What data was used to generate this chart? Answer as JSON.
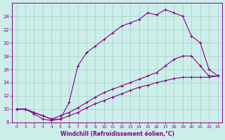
{
  "xlabel": "Windchill (Refroidissement éolien,°C)",
  "background_color": "#cceee8",
  "grid_color": "#aacccc",
  "line_color": "#880088",
  "xlim": [
    -0.5,
    23.5
  ],
  "ylim": [
    8,
    26
  ],
  "yticks": [
    8,
    10,
    12,
    14,
    16,
    18,
    20,
    22,
    24
  ],
  "xticks": [
    0,
    1,
    2,
    3,
    4,
    5,
    6,
    7,
    8,
    9,
    10,
    11,
    12,
    13,
    14,
    15,
    16,
    17,
    18,
    19,
    20,
    21,
    22,
    23
  ],
  "curve1_x": [
    0,
    1,
    2,
    3,
    4,
    5,
    6,
    7,
    8,
    9,
    10,
    11,
    12,
    13,
    14,
    15,
    16,
    17,
    18,
    19,
    20,
    21,
    22,
    23
  ],
  "curve1_y": [
    10.0,
    10.0,
    9.5,
    9.0,
    8.5,
    8.5,
    11.0,
    16.5,
    18.5,
    19.5,
    20.5,
    21.5,
    22.5,
    23.0,
    23.5,
    24.5,
    24.2,
    25.0,
    24.5,
    24.0,
    21.0,
    20.0,
    16.0,
    15.0
  ],
  "curve2_x": [
    0,
    1,
    2,
    3,
    4,
    5,
    6,
    7,
    8,
    9,
    10,
    11,
    12,
    13,
    14,
    15,
    16,
    17,
    18,
    19,
    20,
    21,
    22,
    23
  ],
  "curve2_y": [
    10.0,
    10.0,
    9.5,
    9.0,
    8.5,
    9.0,
    9.5,
    10.2,
    11.0,
    11.8,
    12.5,
    13.0,
    13.5,
    14.0,
    14.5,
    15.0,
    15.5,
    16.5,
    17.5,
    18.0,
    18.0,
    16.5,
    15.0,
    15.0
  ],
  "curve3_x": [
    0,
    1,
    2,
    3,
    4,
    5,
    6,
    7,
    8,
    9,
    10,
    11,
    12,
    13,
    14,
    15,
    16,
    17,
    18,
    19,
    20,
    21,
    22,
    23
  ],
  "curve3_y": [
    10.0,
    10.0,
    9.3,
    8.5,
    8.3,
    8.5,
    9.0,
    9.5,
    10.2,
    10.8,
    11.3,
    11.8,
    12.3,
    12.8,
    13.3,
    13.6,
    14.0,
    14.3,
    14.6,
    14.8,
    14.8,
    14.8,
    14.8,
    15.0
  ]
}
